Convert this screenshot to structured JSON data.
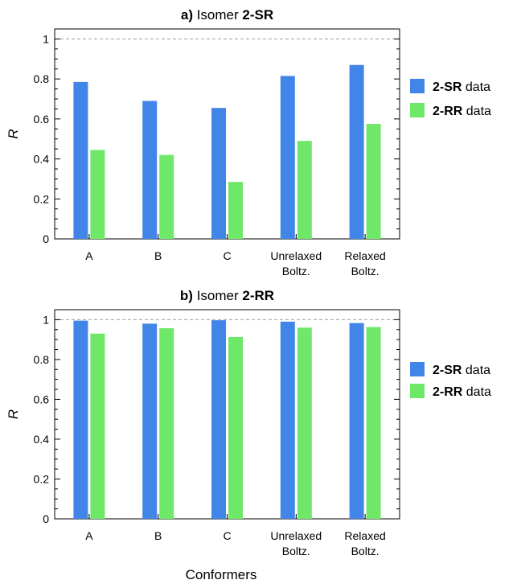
{
  "chart_data": [
    {
      "type": "bar",
      "title_prefix": "a)",
      "title_text": "Isomer",
      "title_bold": "2-SR",
      "ylabel": "R",
      "ylim": [
        0,
        1.05
      ],
      "yticks": [
        "0",
        "0.2",
        "0.4",
        "0.6",
        "0.8",
        "1"
      ],
      "reference_line": 1,
      "categories": [
        [
          "A"
        ],
        [
          "B"
        ],
        [
          "C"
        ],
        [
          "Unrelaxed",
          "Boltz."
        ],
        [
          "Relaxed",
          "Boltz."
        ]
      ],
      "series": [
        {
          "name_bold": "2-SR",
          "name_rest": "data",
          "color": "#4285e8",
          "values": [
            0.785,
            0.69,
            0.655,
            0.815,
            0.87
          ]
        },
        {
          "name_bold": "2-RR",
          "name_rest": "data",
          "color": "#6fe86a",
          "values": [
            0.445,
            0.42,
            0.285,
            0.49,
            0.575
          ]
        }
      ]
    },
    {
      "type": "bar",
      "title_prefix": "b)",
      "title_text": "Isomer",
      "title_bold": "2-RR",
      "ylabel": "R",
      "ylim": [
        0,
        1.05
      ],
      "yticks": [
        "0",
        "0.2",
        "0.4",
        "0.6",
        "0.8",
        "1"
      ],
      "reference_line": 1,
      "categories": [
        [
          "A"
        ],
        [
          "B"
        ],
        [
          "C"
        ],
        [
          "Unrelaxed",
          "Boltz."
        ],
        [
          "Relaxed",
          "Boltz."
        ]
      ],
      "series": [
        {
          "name_bold": "2-SR",
          "name_rest": "data",
          "color": "#4285e8",
          "values": [
            0.995,
            0.98,
            0.997,
            0.99,
            0.983
          ]
        },
        {
          "name_bold": "2-RR",
          "name_rest": "data",
          "color": "#6fe86a",
          "values": [
            0.93,
            0.957,
            0.913,
            0.96,
            0.963
          ]
        }
      ]
    }
  ],
  "xlabel": "Conformers"
}
